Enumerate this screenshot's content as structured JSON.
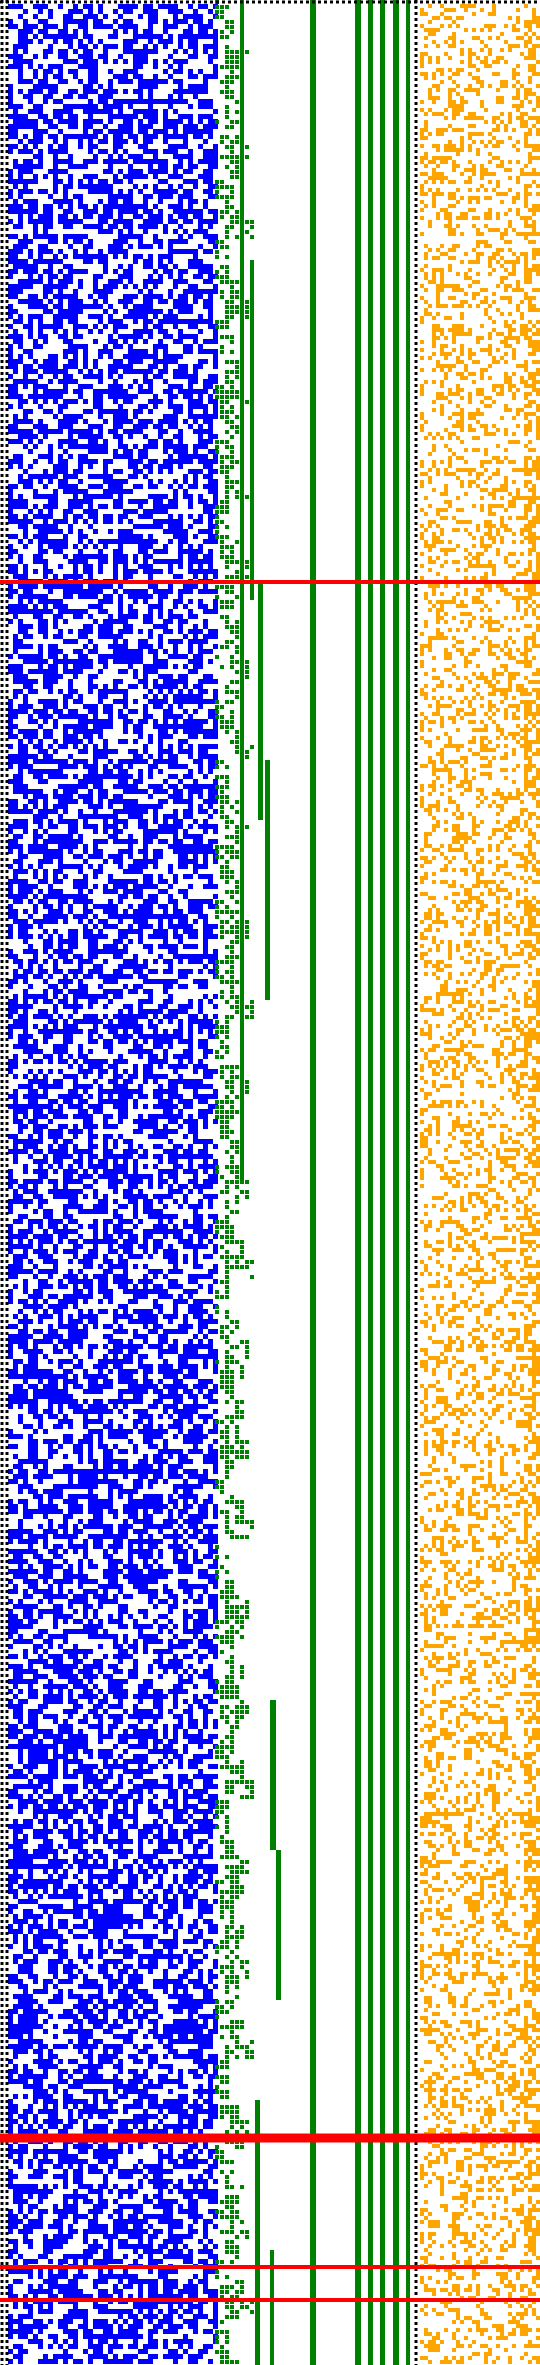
{
  "colors": {
    "background": "#ffffff",
    "blue_noise": "#0000ff",
    "green": "#008000",
    "orange": "#ffa500",
    "red": "#ff0000",
    "dotted_border": "#000000"
  },
  "panels": {
    "left_blue": {
      "icon": "random-pixel-noise-pattern",
      "density": 0.55
    },
    "middle_green": {
      "icon": "vertical-bars-pattern"
    },
    "right_orange": {
      "icon": "sparse-pixel-noise-pattern",
      "density": 0.32
    }
  },
  "red_lines": {
    "count": 5
  }
}
